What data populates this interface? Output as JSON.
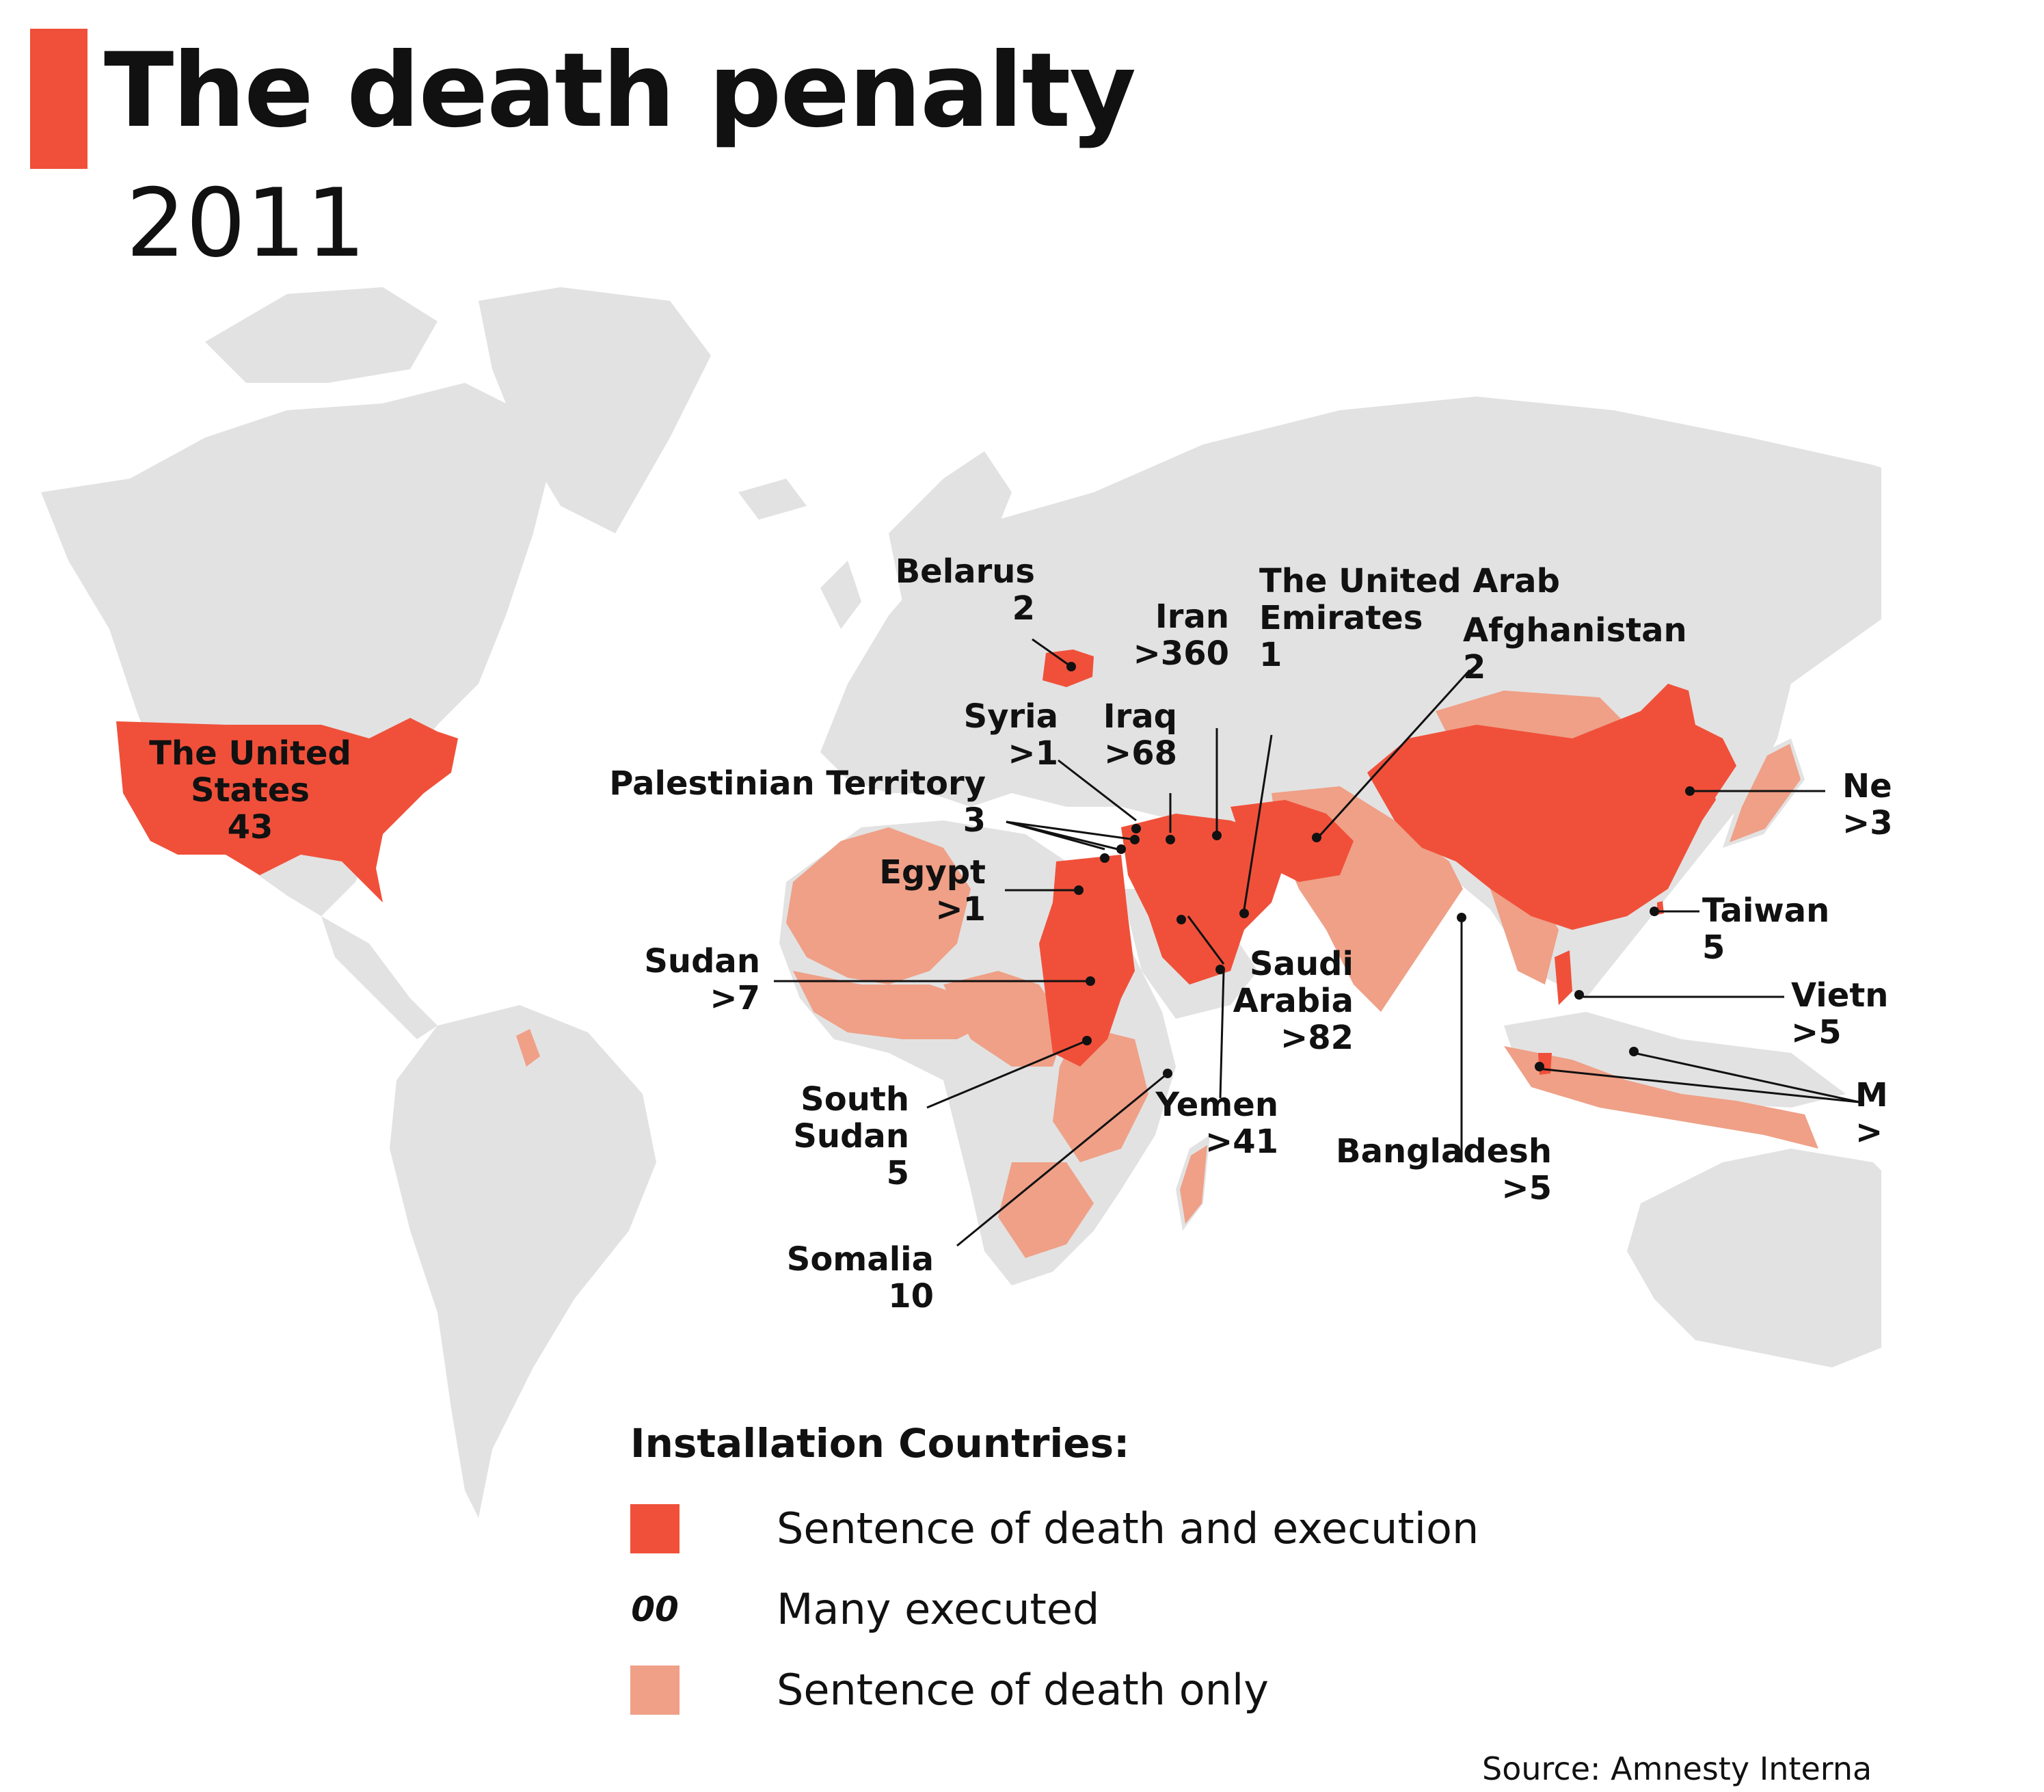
{
  "title": "The death penalty",
  "year": "2011",
  "colors": {
    "accent": "#F0503A",
    "execution": "#F0503A",
    "sentence_only": "#EFA087",
    "land": "#E2E2E2",
    "label": "#111111"
  },
  "countries": [
    {
      "name": "The United",
      "name2": "States",
      "value": "43"
    },
    {
      "name": "Belarus",
      "value": "2"
    },
    {
      "name": "Iran",
      "value": ">360"
    },
    {
      "name": "The United Arab",
      "name2": "Emirates",
      "value": "1"
    },
    {
      "name": "Afghanistan",
      "value": "2"
    },
    {
      "name": "Syria",
      "value": ">1"
    },
    {
      "name": "Iraq",
      "value": ">68"
    },
    {
      "name": "Palestinian Territory",
      "value": "3"
    },
    {
      "name": "Egypt",
      "value": ">1"
    },
    {
      "name": "Sudan",
      "value": ">7"
    },
    {
      "name": "South",
      "name2": "Sudan",
      "value": "5"
    },
    {
      "name": "Somalia",
      "value": "10"
    },
    {
      "name": "Yemen",
      "value": ">41"
    },
    {
      "name": "Saudi",
      "name2": "Arabia",
      "value": ">82"
    },
    {
      "name": "Bangladesh",
      "value": ">5"
    },
    {
      "name": "Taiwan",
      "value": "5"
    },
    {
      "name": "Vietn",
      "value": ">5"
    },
    {
      "name": "Ne",
      "value": ">3"
    },
    {
      "name": "M",
      "value": ">"
    }
  ],
  "legend": {
    "title": "Installation Countries:",
    "items": [
      {
        "label": "Sentence of death and execution",
        "marker": ""
      },
      {
        "label": "Many executed",
        "marker": "00"
      },
      {
        "label": "Sentence of death only",
        "marker": ""
      }
    ]
  },
  "source": "Source: Amnesty Interna"
}
